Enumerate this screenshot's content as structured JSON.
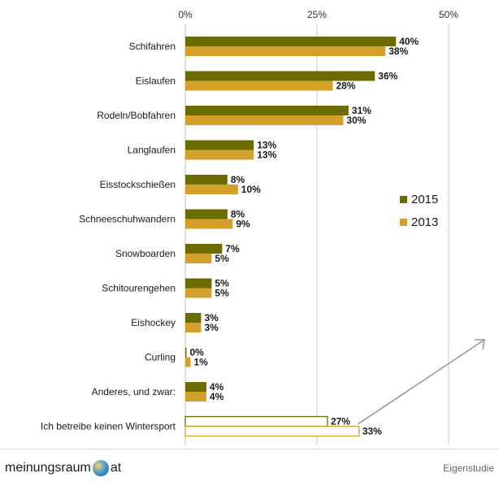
{
  "chart_data": {
    "type": "bar",
    "orientation": "horizontal",
    "categories": [
      "Schifahren",
      "Eislaufen",
      "Rodeln/Bobfahren",
      "Langlaufen",
      "Eisstockschießen",
      "Schneeschuhwandern",
      "Snowboarden",
      "Schitourengehen",
      "Eishockey",
      "Curling",
      "Anderes, und zwar:",
      "Ich betreibe keinen Wintersport"
    ],
    "series": [
      {
        "name": "2015",
        "color": "#6b6b00",
        "values": [
          40,
          36,
          31,
          13,
          8,
          8,
          7,
          5,
          3,
          0,
          4,
          27
        ],
        "labels": [
          "40%",
          "36%",
          "31%",
          "13%",
          "8%",
          "8%",
          "7%",
          "5%",
          "3%",
          "0%",
          "4%",
          "27%"
        ]
      },
      {
        "name": "2013",
        "color": "#d4a02c",
        "values": [
          38,
          28,
          30,
          13,
          10,
          9,
          5,
          5,
          3,
          1,
          4,
          33
        ],
        "labels": [
          "38%",
          "28%",
          "30%",
          "13%",
          "10%",
          "9%",
          "5%",
          "5%",
          "3%",
          "1%",
          "4%",
          "33%"
        ]
      }
    ],
    "outlined_category": "Ich betreibe keinen Wintersport",
    "xlim": [
      0,
      50
    ],
    "x_ticks": [
      0,
      25,
      50
    ],
    "x_tick_labels": [
      "0%",
      "25%",
      "50%"
    ],
    "axis_position": "top",
    "grid": true,
    "legend_position": "right-middle",
    "title": "",
    "xlabel": "",
    "ylabel": ""
  },
  "footer": {
    "brand_left": "meinungsraum",
    "brand_right": "at",
    "source": "Eigenstudie"
  }
}
